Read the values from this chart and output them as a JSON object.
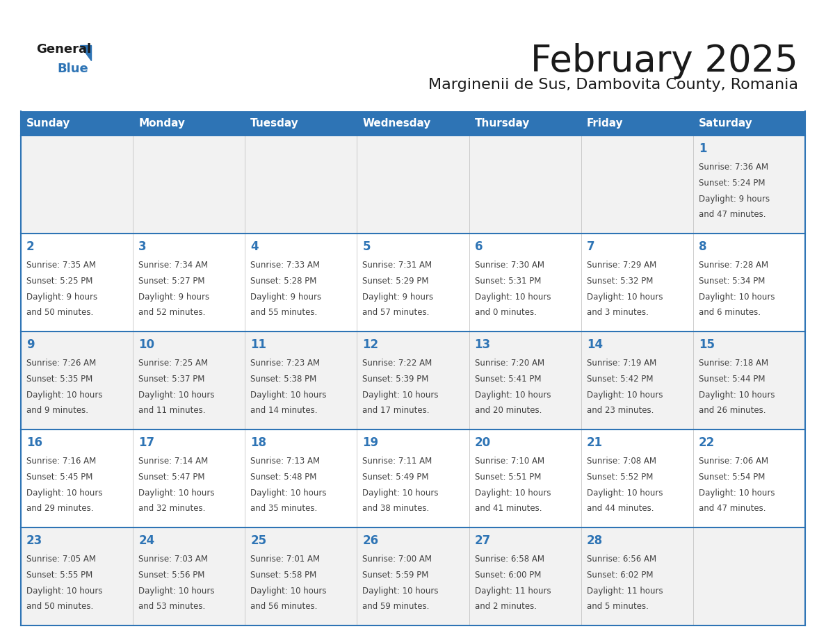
{
  "title": "February 2025",
  "subtitle": "Marginenii de Sus, Dambovita County, Romania",
  "header_bg": "#2E74B5",
  "header_text": "#FFFFFF",
  "row_bg_light": "#F2F2F2",
  "row_bg_white": "#FFFFFF",
  "cell_border_color": "#2E74B5",
  "cell_divider_color": "#CCCCCC",
  "day_headers": [
    "Sunday",
    "Monday",
    "Tuesday",
    "Wednesday",
    "Thursday",
    "Friday",
    "Saturday"
  ],
  "title_color": "#1A1A1A",
  "subtitle_color": "#1A1A1A",
  "day_number_color": "#2E74B5",
  "cell_text_color": "#404040",
  "logo_general_color": "#1A1A1A",
  "logo_blue_color": "#2E74B5",
  "logo_triangle_color": "#2E74B5",
  "calendar": [
    [
      null,
      null,
      null,
      null,
      null,
      null,
      {
        "day": 1,
        "sunrise": "7:36 AM",
        "sunset": "5:24 PM",
        "daylight_h": "9 hours",
        "daylight_m": "and 47 minutes."
      }
    ],
    [
      {
        "day": 2,
        "sunrise": "7:35 AM",
        "sunset": "5:25 PM",
        "daylight_h": "9 hours",
        "daylight_m": "and 50 minutes."
      },
      {
        "day": 3,
        "sunrise": "7:34 AM",
        "sunset": "5:27 PM",
        "daylight_h": "9 hours",
        "daylight_m": "and 52 minutes."
      },
      {
        "day": 4,
        "sunrise": "7:33 AM",
        "sunset": "5:28 PM",
        "daylight_h": "9 hours",
        "daylight_m": "and 55 minutes."
      },
      {
        "day": 5,
        "sunrise": "7:31 AM",
        "sunset": "5:29 PM",
        "daylight_h": "9 hours",
        "daylight_m": "and 57 minutes."
      },
      {
        "day": 6,
        "sunrise": "7:30 AM",
        "sunset": "5:31 PM",
        "daylight_h": "10 hours",
        "daylight_m": "and 0 minutes."
      },
      {
        "day": 7,
        "sunrise": "7:29 AM",
        "sunset": "5:32 PM",
        "daylight_h": "10 hours",
        "daylight_m": "and 3 minutes."
      },
      {
        "day": 8,
        "sunrise": "7:28 AM",
        "sunset": "5:34 PM",
        "daylight_h": "10 hours",
        "daylight_m": "and 6 minutes."
      }
    ],
    [
      {
        "day": 9,
        "sunrise": "7:26 AM",
        "sunset": "5:35 PM",
        "daylight_h": "10 hours",
        "daylight_m": "and 9 minutes."
      },
      {
        "day": 10,
        "sunrise": "7:25 AM",
        "sunset": "5:37 PM",
        "daylight_h": "10 hours",
        "daylight_m": "and 11 minutes."
      },
      {
        "day": 11,
        "sunrise": "7:23 AM",
        "sunset": "5:38 PM",
        "daylight_h": "10 hours",
        "daylight_m": "and 14 minutes."
      },
      {
        "day": 12,
        "sunrise": "7:22 AM",
        "sunset": "5:39 PM",
        "daylight_h": "10 hours",
        "daylight_m": "and 17 minutes."
      },
      {
        "day": 13,
        "sunrise": "7:20 AM",
        "sunset": "5:41 PM",
        "daylight_h": "10 hours",
        "daylight_m": "and 20 minutes."
      },
      {
        "day": 14,
        "sunrise": "7:19 AM",
        "sunset": "5:42 PM",
        "daylight_h": "10 hours",
        "daylight_m": "and 23 minutes."
      },
      {
        "day": 15,
        "sunrise": "7:18 AM",
        "sunset": "5:44 PM",
        "daylight_h": "10 hours",
        "daylight_m": "and 26 minutes."
      }
    ],
    [
      {
        "day": 16,
        "sunrise": "7:16 AM",
        "sunset": "5:45 PM",
        "daylight_h": "10 hours",
        "daylight_m": "and 29 minutes."
      },
      {
        "day": 17,
        "sunrise": "7:14 AM",
        "sunset": "5:47 PM",
        "daylight_h": "10 hours",
        "daylight_m": "and 32 minutes."
      },
      {
        "day": 18,
        "sunrise": "7:13 AM",
        "sunset": "5:48 PM",
        "daylight_h": "10 hours",
        "daylight_m": "and 35 minutes."
      },
      {
        "day": 19,
        "sunrise": "7:11 AM",
        "sunset": "5:49 PM",
        "daylight_h": "10 hours",
        "daylight_m": "and 38 minutes."
      },
      {
        "day": 20,
        "sunrise": "7:10 AM",
        "sunset": "5:51 PM",
        "daylight_h": "10 hours",
        "daylight_m": "and 41 minutes."
      },
      {
        "day": 21,
        "sunrise": "7:08 AM",
        "sunset": "5:52 PM",
        "daylight_h": "10 hours",
        "daylight_m": "and 44 minutes."
      },
      {
        "day": 22,
        "sunrise": "7:06 AM",
        "sunset": "5:54 PM",
        "daylight_h": "10 hours",
        "daylight_m": "and 47 minutes."
      }
    ],
    [
      {
        "day": 23,
        "sunrise": "7:05 AM",
        "sunset": "5:55 PM",
        "daylight_h": "10 hours",
        "daylight_m": "and 50 minutes."
      },
      {
        "day": 24,
        "sunrise": "7:03 AM",
        "sunset": "5:56 PM",
        "daylight_h": "10 hours",
        "daylight_m": "and 53 minutes."
      },
      {
        "day": 25,
        "sunrise": "7:01 AM",
        "sunset": "5:58 PM",
        "daylight_h": "10 hours",
        "daylight_m": "and 56 minutes."
      },
      {
        "day": 26,
        "sunrise": "7:00 AM",
        "sunset": "5:59 PM",
        "daylight_h": "10 hours",
        "daylight_m": "and 59 minutes."
      },
      {
        "day": 27,
        "sunrise": "6:58 AM",
        "sunset": "6:00 PM",
        "daylight_h": "11 hours",
        "daylight_m": "and 2 minutes."
      },
      {
        "day": 28,
        "sunrise": "6:56 AM",
        "sunset": "6:02 PM",
        "daylight_h": "11 hours",
        "daylight_m": "and 5 minutes."
      },
      null
    ]
  ]
}
